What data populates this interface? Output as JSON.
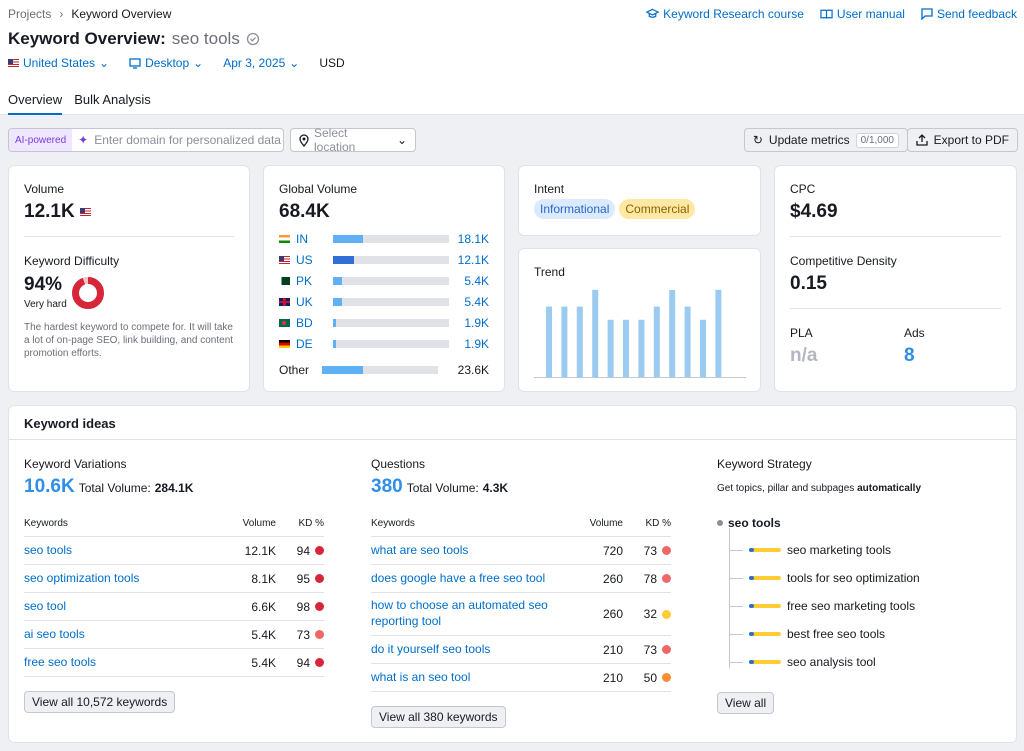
{
  "breadcrumb": {
    "parent": "Projects",
    "current": "Keyword Overview"
  },
  "toplinks": {
    "course": "Keyword Research course",
    "manual": "User manual",
    "feedback": "Send feedback"
  },
  "title": {
    "prefix": "Keyword Overview:",
    "keyword": "seo tools"
  },
  "filters": {
    "country": "United States",
    "device": "Desktop",
    "date": "Apr 3, 2025",
    "currency": "USD"
  },
  "tabs": [
    "Overview",
    "Bulk Analysis"
  ],
  "toolbar": {
    "ai_badge": "AI-powered",
    "domain_placeholder": "Enter domain for personalized data",
    "location_placeholder": "Select location",
    "update_label": "Update metrics",
    "update_count": "0/1,000",
    "export_label": "Export to PDF"
  },
  "volume": {
    "label": "Volume",
    "value": "12.1K"
  },
  "difficulty": {
    "label": "Keyword Difficulty",
    "value": "94%",
    "percent": 94,
    "level": "Very hard",
    "desc": "The hardest keyword to compete for. It will take a lot of on-page SEO, link building, and content promotion efforts."
  },
  "global": {
    "label": "Global Volume",
    "value": "68.4K",
    "rows": [
      {
        "code": "IN",
        "value": "18.1K",
        "fraction": 0.26,
        "color": "#5fb0f5",
        "flag": "in"
      },
      {
        "code": "US",
        "value": "12.1K",
        "fraction": 0.18,
        "color": "#2f6fd6",
        "flag": "us"
      },
      {
        "code": "PK",
        "value": "5.4K",
        "fraction": 0.08,
        "color": "#5fb0f5",
        "flag": "pk"
      },
      {
        "code": "UK",
        "value": "5.4K",
        "fraction": 0.08,
        "color": "#5fb0f5",
        "flag": "uk"
      },
      {
        "code": "BD",
        "value": "1.9K",
        "fraction": 0.03,
        "color": "#5fb0f5",
        "flag": "bd"
      },
      {
        "code": "DE",
        "value": "1.9K",
        "fraction": 0.03,
        "color": "#5fb0f5",
        "flag": "de"
      }
    ],
    "other": {
      "label": "Other",
      "value": "23.6K",
      "fraction": 0.35,
      "color": "#5fb0f5"
    }
  },
  "intent": {
    "label": "Intent",
    "tags": [
      {
        "text": "Informational",
        "bg": "#dbeafe",
        "fg": "#2668c4"
      },
      {
        "text": "Commercial",
        "bg": "#ffe8a3",
        "fg": "#8a6200"
      }
    ]
  },
  "trend": {
    "label": "Trend",
    "values": [
      0.8,
      0.8,
      0.8,
      0.99,
      0.65,
      0.65,
      0.65,
      0.8,
      0.99,
      0.8,
      0.65,
      0.99
    ]
  },
  "cpc": {
    "label": "CPC",
    "value": "$4.69"
  },
  "density": {
    "label": "Competitive Density",
    "value": "0.15"
  },
  "pla": {
    "label": "PLA",
    "value": "n/a"
  },
  "ads": {
    "label": "Ads",
    "value": "8"
  },
  "ideas": {
    "title": "Keyword ideas",
    "variations": {
      "label": "Keyword Variations",
      "count": "10.6K",
      "total_label": "Total Volume:",
      "total": "284.1K",
      "headers": {
        "kw": "Keywords",
        "vol": "Volume",
        "kd": "KD %"
      },
      "rows": [
        {
          "kw": "seo tools",
          "vol": "12.1K",
          "kd": "94",
          "color": "#d6263a"
        },
        {
          "kw": "seo optimization tools",
          "vol": "8.1K",
          "kd": "95",
          "color": "#d6263a"
        },
        {
          "kw": "seo tool",
          "vol": "6.6K",
          "kd": "98",
          "color": "#d6263a"
        },
        {
          "kw": "ai seo tools",
          "vol": "5.4K",
          "kd": "73",
          "color": "#f06767"
        },
        {
          "kw": "free seo tools",
          "vol": "5.4K",
          "kd": "94",
          "color": "#d6263a"
        }
      ],
      "button": "View all 10,572 keywords"
    },
    "questions": {
      "label": "Questions",
      "count": "380",
      "total_label": "Total Volume:",
      "total": "4.3K",
      "headers": {
        "kw": "Keywords",
        "vol": "Volume",
        "kd": "KD %"
      },
      "rows": [
        {
          "kw": "what are seo tools",
          "vol": "720",
          "kd": "73",
          "color": "#f06767"
        },
        {
          "kw": "does google have a free seo tool",
          "vol": "260",
          "kd": "78",
          "color": "#f06767"
        },
        {
          "kw": "how to choose an automated seo reporting tool",
          "vol": "260",
          "kd": "32",
          "color": "#ffcc33"
        },
        {
          "kw": "do it yourself seo tools",
          "vol": "210",
          "kd": "73",
          "color": "#f06767"
        },
        {
          "kw": "what is an seo tool",
          "vol": "210",
          "kd": "50",
          "color": "#ff8c2e"
        }
      ],
      "button": "View all 380 keywords"
    },
    "strategy": {
      "label": "Keyword Strategy",
      "desc_prefix": "Get topics, pillar and subpages",
      "desc_bold": "automatically",
      "root": "seo tools",
      "items": [
        "seo marketing tools",
        "tools for seo optimization",
        "free seo marketing tools",
        "best free seo tools",
        "seo analysis tool"
      ],
      "button": "View all"
    }
  }
}
